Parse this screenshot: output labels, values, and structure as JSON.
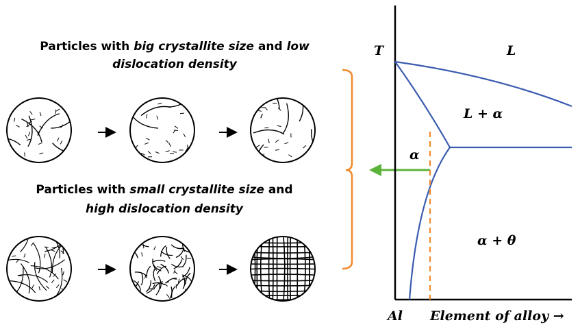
{
  "top_caption": {
    "parts": [
      "Particles with ",
      "big crystallite size",
      " and ",
      "low",
      "dislocation density"
    ]
  },
  "bottom_caption": {
    "parts": [
      "Particles with ",
      "small crystallite size",
      " and",
      "high dislocation density"
    ]
  },
  "phase_diagram": {
    "y_axis_label": "T",
    "x_axis_origin_label": "Al",
    "x_axis_label": "Element of alloy →",
    "regions": [
      "L",
      "L + α",
      "α",
      "α + θ"
    ]
  }
}
